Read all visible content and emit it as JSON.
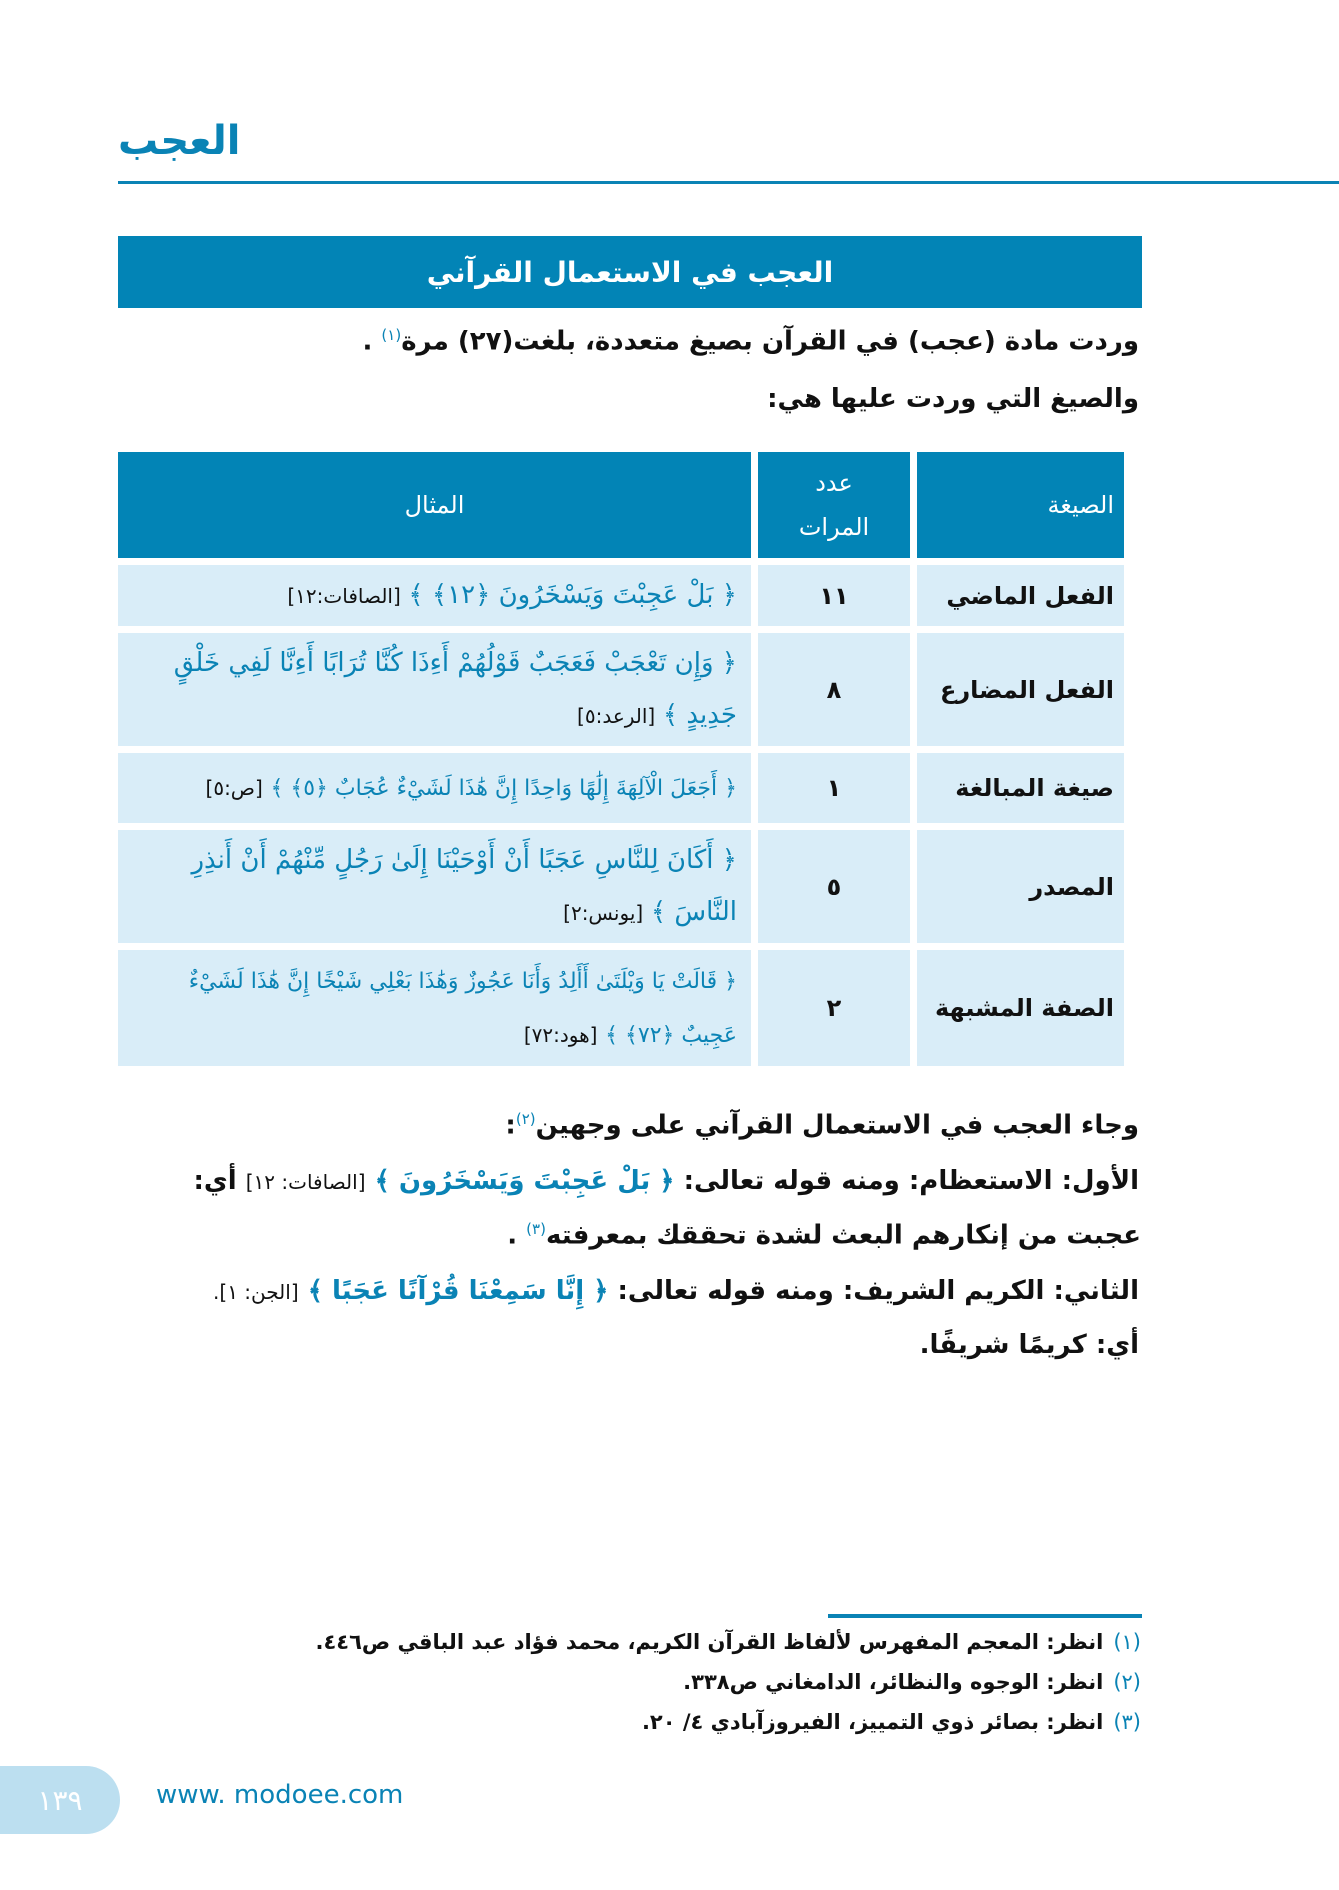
{
  "header": {
    "running_title": "العجب"
  },
  "section": {
    "title": "العجب في الاستعمال القرآني"
  },
  "intro": {
    "line1": "وردت مادة (عجب) في القرآن بصيغ متعددة، بلغت(٢٧) مرة",
    "line1_note": "(١)",
    "line1_end": ".",
    "line2": "والصيغ التي وردت عليها هي:"
  },
  "table": {
    "headers": [
      "الصيغة",
      "عدد المرات",
      "المثال"
    ],
    "rows": [
      {
        "form": "الفعل الماضي",
        "count": "١١",
        "verse": "﴿ بَلْ عَجِبْتَ وَيَسْخَرُونَ ﴿١٢﴾ ﴾",
        "ref": "[الصافات:١٢]"
      },
      {
        "form": "الفعل المضارع",
        "count": "٨",
        "verse": "﴿ وَإِن تَعْجَبْ فَعَجَبٌ قَوْلُهُمْ أَءِذَا كُنَّا تُرَابًا أَءِنَّا لَفِي خَلْقٍ جَدِيدٍ ﴾",
        "ref": "[الرعد:٥]"
      },
      {
        "form": "صيغة المبالغة",
        "count": "١",
        "verse": "﴿ أَجَعَلَ الْآلِهَةَ إِلَٰهًا وَاحِدًا إِنَّ هَٰذَا لَشَيْءٌ عُجَابٌ ﴿٥﴾ ﴾",
        "ref": "[ص:٥]"
      },
      {
        "form": "المصدر",
        "count": "٥",
        "verse": "﴿ أَكَانَ لِلنَّاسِ عَجَبًا أَنْ أَوْحَيْنَا إِلَىٰ رَجُلٍ مِّنْهُمْ أَنْ أَنذِرِ النَّاسَ ﴾",
        "ref": "[يونس:٢]"
      },
      {
        "form": "الصفة المشبهة",
        "count": "٢",
        "verse": "﴿ قَالَتْ يَا وَيْلَتَىٰ أَأَلِدُ وَأَنَا عَجُوزٌ وَهَٰذَا بَعْلِي شَيْخًا إِنَّ هَٰذَا لَشَيْءٌ عَجِيبٌ ﴿٧٢﴾ ﴾",
        "ref": "[هود:٧٢]"
      }
    ]
  },
  "body": {
    "p1": "وجاء العجب في الاستعمال القرآني على وجهين",
    "p1_note": "(٢)",
    "p1_end": ":",
    "p2_label": "الأول: الاستعظام: ومنه قوله تعالى:",
    "p2_verse": "﴿ بَلْ عَجِبْتَ وَيَسْخَرُونَ ﴾",
    "p2_ref": "[الصافات: ١٢]",
    "p2_end": "أي:",
    "p3": "عجبت من إنكارهم البعث لشدة تحققك بمعرفته",
    "p3_note": "(٣)",
    "p3_end": ".",
    "p4_label": "الثاني: الكريم الشريف: ومنه قوله تعالى:",
    "p4_verse": "﴿ إِنَّا سَمِعْنَا قُرْآنًا عَجَبًا ﴾",
    "p4_ref": "[الجن: ١].",
    "p5": "أي: كريمًا شريفًا."
  },
  "footnotes": [
    {
      "num": "(١)",
      "text": "انظر: المعجم المفهرس لألفاظ القرآن الكريم، محمد فؤاد عبد الباقي ص٤٤٦."
    },
    {
      "num": "(٢)",
      "text": "انظر: الوجوه والنظائر، الدامغاني ص٣٣٨."
    },
    {
      "num": "(٣)",
      "text": "انظر: بصائر ذوي التمييز، الفيروزآبادي ٤/ ٢٠."
    }
  ],
  "footer": {
    "page_number": "١٣٩",
    "website": "www. modoee.com"
  },
  "colors": {
    "accent": "#0284b6",
    "light_cell": "#d9edf8",
    "page_box": "#bcdff0"
  }
}
